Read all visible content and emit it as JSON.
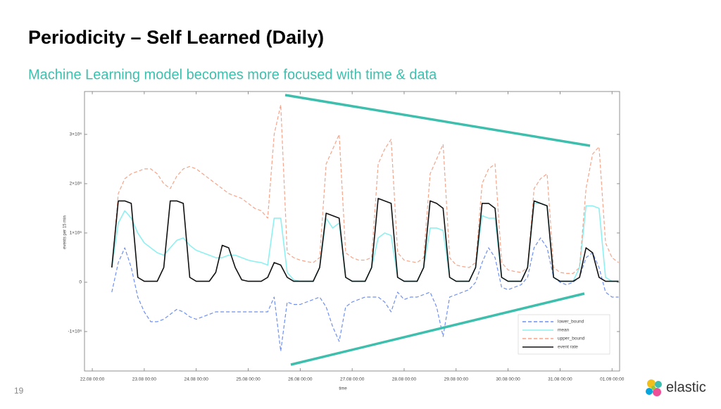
{
  "slide": {
    "title": "Periodicity – Self Learned (Daily)",
    "subtitle": "Machine Learning model becomes more focused with time & data",
    "page_number": "19",
    "logo_text": "elastic"
  },
  "chart_data": {
    "type": "line",
    "x_label": "time",
    "y_label": "events per 15 min",
    "xlim": [
      -3.6,
      243.5
    ],
    "ylim": [
      -1800000,
      3870000
    ],
    "xticks": [
      {
        "value": 0,
        "label": "22.08 00:00"
      },
      {
        "value": 24,
        "label": "23.08 00:00"
      },
      {
        "value": 48,
        "label": "24.08 00:00"
      },
      {
        "value": 72,
        "label": "25.08 00:00"
      },
      {
        "value": 96,
        "label": "26.08 00:00"
      },
      {
        "value": 120,
        "label": "27.08 00:00"
      },
      {
        "value": 144,
        "label": "28.08 00:00"
      },
      {
        "value": 168,
        "label": "29.08 00:00"
      },
      {
        "value": 192,
        "label": "30.08 00:00"
      },
      {
        "value": 216,
        "label": "31.08 00:00"
      },
      {
        "value": 240,
        "label": "01.09 00:00"
      }
    ],
    "yticks": [
      {
        "value": -1000000,
        "label": "-1×10⁶"
      },
      0,
      {
        "value": 1000000,
        "label": "1×10⁶"
      },
      {
        "value": 2000000,
        "label": "2×10⁶"
      },
      {
        "value": 3000000,
        "label": "3×10⁶"
      }
    ],
    "legend": "lower right",
    "x": [
      9,
      12,
      15,
      18,
      21,
      24,
      27,
      30,
      33,
      36,
      39,
      42,
      45,
      48,
      51,
      54,
      57,
      60,
      63,
      66,
      69,
      72,
      75,
      78,
      81,
      84,
      87,
      90,
      93,
      96,
      99,
      102,
      105,
      108,
      111,
      114,
      117,
      120,
      123,
      126,
      129,
      132,
      135,
      138,
      141,
      144,
      147,
      150,
      153,
      156,
      159,
      162,
      165,
      168,
      171,
      174,
      177,
      180,
      183,
      186,
      189,
      192,
      195,
      198,
      201,
      204,
      207,
      210,
      213,
      216,
      219,
      222,
      225,
      228,
      231,
      234,
      237,
      240,
      243
    ],
    "series": [
      {
        "name": "lower_bound",
        "color": "#6f8ff0",
        "dash": true,
        "values": [
          -200000,
          400000,
          700000,
          300000,
          -300000,
          -600000,
          -800000,
          -800000,
          -750000,
          -650000,
          -550000,
          -600000,
          -700000,
          -750000,
          -700000,
          -650000,
          -600000,
          -600000,
          -600000,
          -600000,
          -600000,
          -600000,
          -600000,
          -600000,
          -600000,
          -300000,
          -1400000,
          -400000,
          -450000,
          -450000,
          -400000,
          -350000,
          -300000,
          -500000,
          -900000,
          -1200000,
          -500000,
          -400000,
          -350000,
          -300000,
          -300000,
          -300000,
          -400000,
          -600000,
          -200000,
          -350000,
          -300000,
          -300000,
          -250000,
          -200000,
          -500000,
          -1100000,
          -300000,
          -250000,
          -200000,
          -150000,
          0,
          400000,
          700000,
          500000,
          -100000,
          -150000,
          -100000,
          -50000,
          100000,
          700000,
          900000,
          700000,
          100000,
          0,
          -50000,
          0,
          100000,
          500000,
          600000,
          300000,
          -200000,
          -300000,
          -300000
        ]
      },
      {
        "name": "mean",
        "color": "#8ef0f0",
        "dash": false,
        "values": [
          300000,
          1200000,
          1450000,
          1300000,
          1000000,
          800000,
          700000,
          600000,
          550000,
          700000,
          850000,
          900000,
          750000,
          650000,
          600000,
          550000,
          500000,
          500000,
          550000,
          550000,
          500000,
          450000,
          420000,
          400000,
          350000,
          1300000,
          1300000,
          200000,
          50000,
          20000,
          20000,
          20000,
          300000,
          1300000,
          1100000,
          1200000,
          100000,
          20000,
          20000,
          20000,
          300000,
          900000,
          1000000,
          950000,
          100000,
          20000,
          20000,
          20000,
          300000,
          1100000,
          1100000,
          1050000,
          100000,
          20000,
          20000,
          20000,
          300000,
          1350000,
          1300000,
          1300000,
          100000,
          20000,
          20000,
          20000,
          300000,
          1600000,
          1600000,
          1550000,
          100000,
          20000,
          20000,
          20000,
          300000,
          1550000,
          1550000,
          1500000,
          100000,
          20000,
          20000
        ]
      },
      {
        "name": "upper_bound",
        "color": "#f5a48a",
        "dash": true,
        "values": [
          300000,
          1800000,
          2100000,
          2200000,
          2250000,
          2300000,
          2300000,
          2200000,
          2000000,
          1900000,
          2150000,
          2300000,
          2350000,
          2300000,
          2200000,
          2100000,
          2000000,
          1900000,
          1800000,
          1750000,
          1700000,
          1600000,
          1500000,
          1450000,
          1300000,
          3000000,
          3600000,
          600000,
          500000,
          450000,
          420000,
          400000,
          500000,
          2400000,
          2700000,
          3000000,
          600000,
          500000,
          450000,
          450000,
          500000,
          2400000,
          2700000,
          2900000,
          600000,
          450000,
          420000,
          400000,
          500000,
          2200000,
          2500000,
          2800000,
          500000,
          350000,
          320000,
          300000,
          400000,
          2000000,
          2300000,
          2400000,
          400000,
          250000,
          220000,
          200000,
          300000,
          1900000,
          2100000,
          2200000,
          300000,
          200000,
          180000,
          180000,
          300000,
          1900000,
          2600000,
          2750000,
          800000,
          500000,
          400000
        ]
      },
      {
        "name": "event rate",
        "color": "#111111",
        "dash": false,
        "values": [
          300000,
          1650000,
          1650000,
          1600000,
          100000,
          20000,
          20000,
          20000,
          300000,
          1650000,
          1650000,
          1600000,
          100000,
          20000,
          20000,
          20000,
          200000,
          750000,
          700000,
          300000,
          50000,
          20000,
          20000,
          20000,
          100000,
          400000,
          350000,
          100000,
          20000,
          20000,
          20000,
          20000,
          300000,
          1400000,
          1350000,
          1300000,
          100000,
          20000,
          20000,
          20000,
          300000,
          1700000,
          1650000,
          1600000,
          100000,
          20000,
          20000,
          20000,
          300000,
          1650000,
          1600000,
          1500000,
          100000,
          20000,
          20000,
          20000,
          300000,
          1600000,
          1600000,
          1500000,
          100000,
          20000,
          20000,
          20000,
          300000,
          1650000,
          1600000,
          1550000,
          100000,
          20000,
          20000,
          20000,
          100000,
          700000,
          600000,
          100000,
          20000,
          20000,
          20000
        ]
      }
    ]
  }
}
